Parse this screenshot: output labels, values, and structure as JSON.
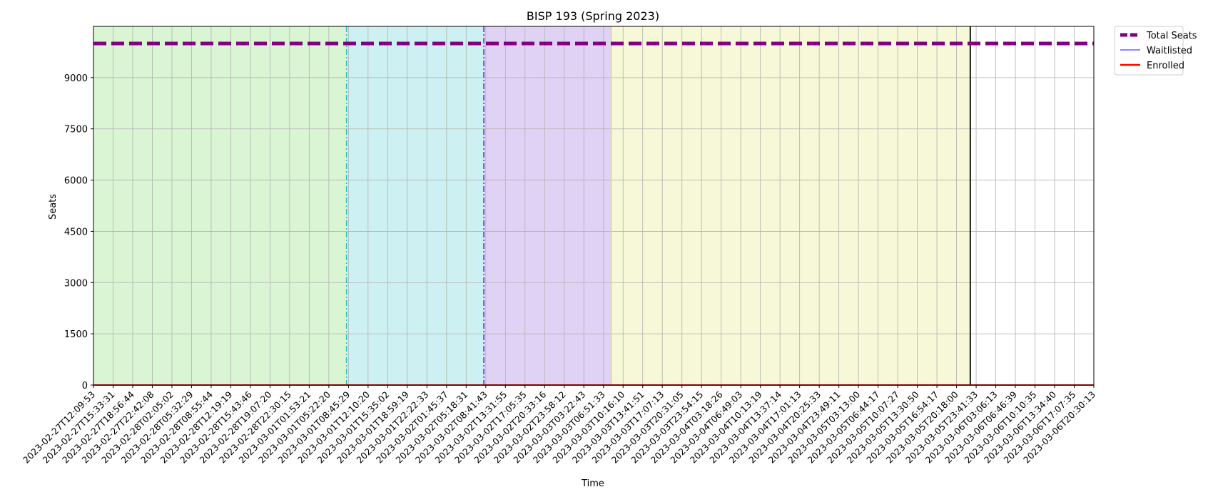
{
  "chart_data": {
    "type": "line",
    "title": "BISP 193 (Spring 2023)",
    "xlabel": "Time",
    "ylabel": "Seats",
    "x_tick_labels": [
      "2023-02-27T12:09:53",
      "2023-02-27T15:33:31",
      "2023-02-27T18:56:44",
      "2023-02-27T22:42:08",
      "2023-02-28T02:05:02",
      "2023-02-28T05:32:29",
      "2023-02-28T08:55:44",
      "2023-02-28T12:19:19",
      "2023-02-28T15:43:46",
      "2023-02-28T19:07:20",
      "2023-02-28T22:30:15",
      "2023-03-01T01:53:21",
      "2023-03-01T05:22:20",
      "2023-03-01T08:45:29",
      "2023-03-01T12:10:20",
      "2023-03-01T15:35:02",
      "2023-03-01T18:59:19",
      "2023-03-01T22:22:33",
      "2023-03-02T01:45:37",
      "2023-03-02T05:18:31",
      "2023-03-02T08:41:43",
      "2023-03-02T13:31:55",
      "2023-03-02T17:05:35",
      "2023-03-02T20:33:16",
      "2023-03-02T23:58:12",
      "2023-03-03T03:22:43",
      "2023-03-03T06:51:33",
      "2023-03-03T10:16:10",
      "2023-03-03T13:41:51",
      "2023-03-03T17:07:13",
      "2023-03-03T20:31:05",
      "2023-03-03T23:54:15",
      "2023-03-04T03:18:26",
      "2023-03-04T06:49:03",
      "2023-03-04T10:13:19",
      "2023-03-04T13:37:14",
      "2023-03-04T17:01:13",
      "2023-03-04T20:25:33",
      "2023-03-04T23:49:11",
      "2023-03-05T03:13:00",
      "2023-03-05T06:44:17",
      "2023-03-05T10:07:27",
      "2023-03-05T13:30:50",
      "2023-03-05T16:54:17",
      "2023-03-05T20:18:00",
      "2023-03-05T23:41:33",
      "2023-03-06T03:06:13",
      "2023-03-06T06:46:39",
      "2023-03-06T10:10:35",
      "2023-03-06T13:34:40",
      "2023-03-06T17:07:35",
      "2023-03-06T20:30:13"
    ],
    "y_ticks": [
      0,
      1500,
      3000,
      4500,
      6000,
      7500,
      9000
    ],
    "ylim": [
      0,
      10500
    ],
    "grid": true,
    "legend_position": "outside-top-right",
    "series": [
      {
        "name": "Total Seats",
        "color": "#800080",
        "style": "dashed",
        "values": [
          10000,
          10000
        ]
      },
      {
        "name": "Waitlisted",
        "color": "#4040ff",
        "style": "solid",
        "values": [
          0,
          0
        ]
      },
      {
        "name": "Enrolled",
        "color": "#ff0000",
        "style": "solid",
        "values": [
          0,
          0
        ]
      }
    ],
    "phases": [
      {
        "start_tick": 0,
        "end_tick": 12.9,
        "color": "#d9f5d3"
      },
      {
        "start_tick": 12.9,
        "end_tick": 19.9,
        "color": "#cdf1f2"
      },
      {
        "start_tick": 19.9,
        "end_tick": 26.4,
        "color": "#e0d2f5"
      },
      {
        "start_tick": 26.4,
        "end_tick": 44.7,
        "color": "#f7f8d7"
      }
    ],
    "markers": [
      {
        "tick": 12.9,
        "color": "#20c0c0",
        "style": "dash-dot"
      },
      {
        "tick": 19.9,
        "color": "#6030c0",
        "style": "dash-dot"
      },
      {
        "tick": 26.4,
        "color": "#e8e070",
        "style": "solid"
      },
      {
        "tick": 44.7,
        "color": "#000000",
        "style": "solid"
      }
    ]
  }
}
